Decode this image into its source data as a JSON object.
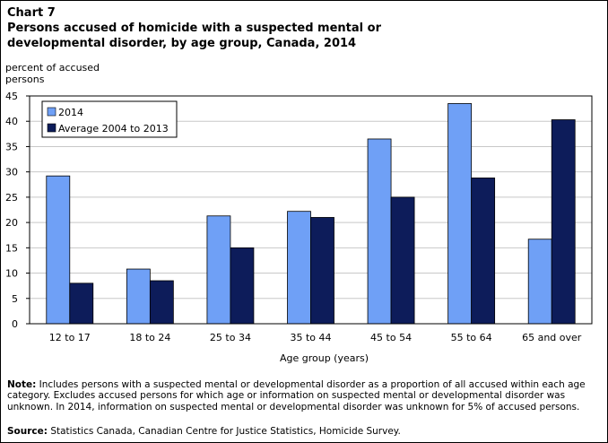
{
  "header": {
    "chart_label": "Chart 7",
    "title": "Persons accused of homicide with a suspected mental or developmental disorder, by age group, Canada, 2014"
  },
  "footer": {
    "note_label": "Note:",
    "note_text": " Includes persons with a suspected mental or developmental disorder as a proportion of all accused within each age category. Excludes accused persons for which age or information on suspected mental or developmental disorder was unknown. In 2014, information on suspected mental or developmental disorder was unknown for 5% of accused persons.",
    "source_label": "Source:",
    "source_text": " Statistics Canada, Canadian Centre for Justice Statistics, Homicide Survey."
  },
  "colors": {
    "series_2014": "#6fa0f6",
    "series_avg": "#0d1c5a",
    "grid": "#c8c8c8"
  },
  "chart_data": {
    "type": "bar",
    "title": "Persons accused of homicide with a suspected mental or developmental disorder, by age group, Canada, 2014",
    "ylabel": "percent of accused persons",
    "xlabel": "Age group (years)",
    "ylim": [
      0,
      45
    ],
    "yticks": [
      "0",
      "5",
      "10",
      "15",
      "20",
      "25",
      "30",
      "35",
      "40",
      "45"
    ],
    "grid": true,
    "legend_position": "top-left",
    "categories": [
      "12 to 17",
      "18 to 24",
      "25 to 34",
      "35 to 44",
      "45 to 54",
      "55 to 64",
      "65 and over"
    ],
    "series": [
      {
        "name": "2014",
        "values": [
          29.2,
          10.8,
          21.3,
          22.2,
          36.5,
          43.5,
          16.7
        ]
      },
      {
        "name": "Average 2004 to 2013",
        "values": [
          8.0,
          8.5,
          15.0,
          21.0,
          25.0,
          28.8,
          40.3
        ]
      }
    ]
  }
}
